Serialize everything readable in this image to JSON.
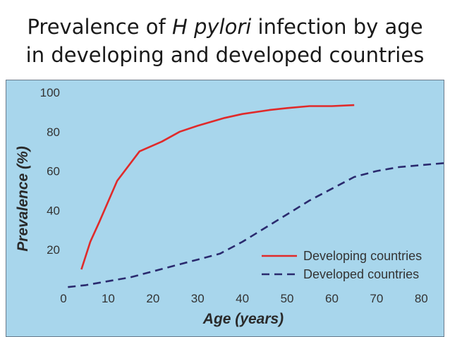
{
  "slide": {
    "title_line1_pre": "Prevalence of ",
    "title_line1_em": "H pylori",
    "title_line1_post": " infection by age",
    "title_line2": "in developing and developed countries"
  },
  "chart_data": {
    "type": "line",
    "xlabel": "Age (years)",
    "ylabel": "Prevalence (%)",
    "xlim": [
      0,
      85
    ],
    "ylim": [
      0,
      100
    ],
    "xticks": [
      0,
      10,
      20,
      30,
      40,
      50,
      60,
      70,
      80
    ],
    "yticks": [
      20,
      40,
      60,
      80,
      100
    ],
    "grid": false,
    "legend_position": "bottom-right",
    "series": [
      {
        "name": "Developing countries",
        "style": "solid",
        "color": "#e02a2a",
        "x": [
          4,
          6,
          8,
          12,
          17,
          22,
          26,
          30,
          36,
          40,
          46,
          50,
          55,
          60,
          65
        ],
        "y": [
          10,
          24,
          34,
          55,
          70,
          75,
          80,
          83,
          87,
          89,
          91,
          92,
          93,
          93,
          93.5
        ]
      },
      {
        "name": "Developed countries",
        "style": "dashed",
        "color": "#2a2a6e",
        "x": [
          1,
          5,
          10,
          15,
          20,
          25,
          30,
          35,
          40,
          45,
          50,
          55,
          60,
          65,
          70,
          75,
          80,
          85
        ],
        "y": [
          1,
          2,
          4,
          6,
          9,
          12,
          15,
          18,
          24,
          31,
          38,
          45,
          51,
          57,
          60,
          62,
          63,
          64
        ]
      }
    ]
  }
}
